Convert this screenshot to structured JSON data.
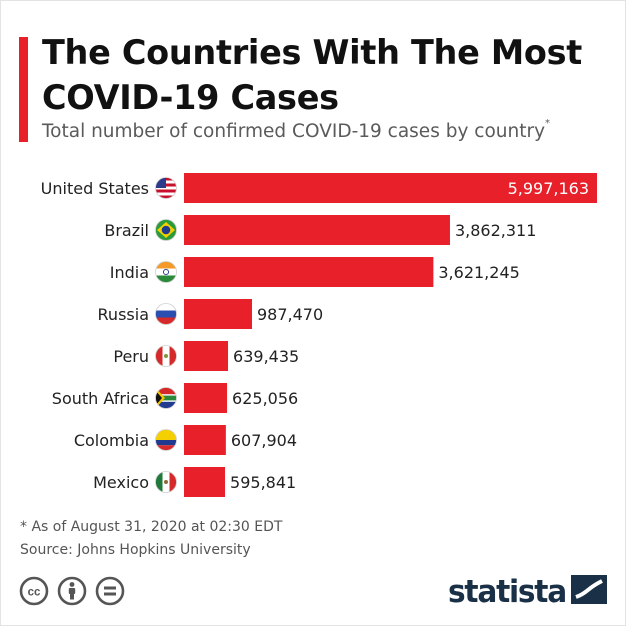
{
  "title": "The Countries With The Most COVID-19 Cases",
  "subtitle": "Total number of confirmed COVID-19 cases by country",
  "subtitle_marker": "*",
  "footnote": "* As of August 31, 2020 at 02:30 EDT",
  "source": "Source: Johns Hopkins University",
  "brand": "statista",
  "colors": {
    "bar": "#e8202a",
    "accent": "#e8202a",
    "brand": "#1a3047"
  },
  "license_icons": [
    "cc-icon",
    "attribution-icon",
    "no-derivatives-icon"
  ],
  "chart_data": {
    "type": "bar",
    "orientation": "horizontal",
    "categories": [
      "United States",
      "Brazil",
      "India",
      "Russia",
      "Peru",
      "South Africa",
      "Colombia",
      "Mexico"
    ],
    "values": [
      5997163,
      3862311,
      3621245,
      987470,
      639435,
      625056,
      607904,
      595841
    ],
    "value_labels": [
      "5,997,163",
      "3,862,311",
      "3,621,245",
      "987,470",
      "639,435",
      "625,056",
      "607,904",
      "595,841"
    ],
    "flag_icons": [
      "us-flag-icon",
      "brazil-flag-icon",
      "india-flag-icon",
      "russia-flag-icon",
      "peru-flag-icon",
      "south-africa-flag-icon",
      "colombia-flag-icon",
      "mexico-flag-icon"
    ],
    "xlim": [
      0,
      5997163
    ],
    "grid": false,
    "legend": "none"
  }
}
